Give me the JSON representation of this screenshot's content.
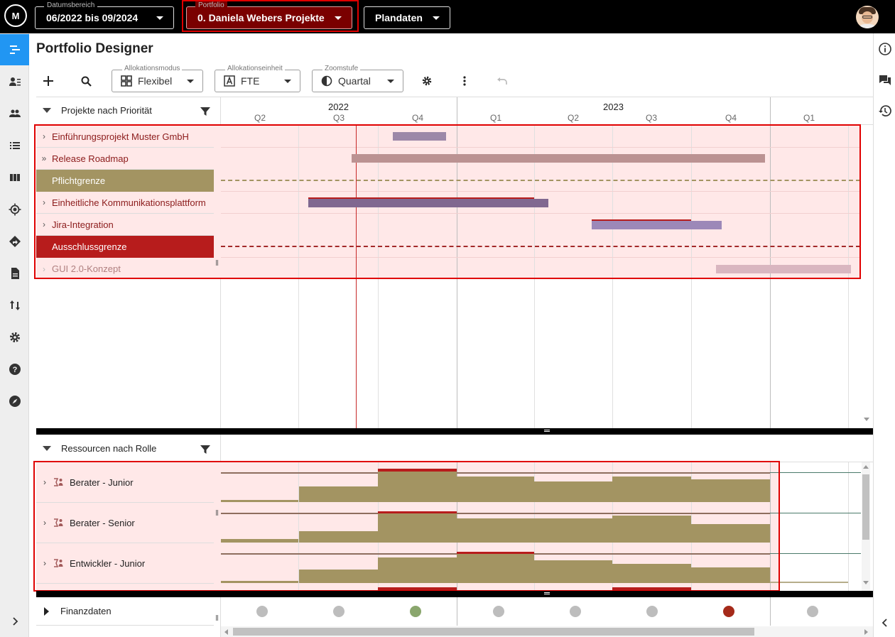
{
  "topbar": {
    "logo_text": "M",
    "date_range": {
      "label": "Datumsbereich",
      "value": "06/2022 bis 09/2024"
    },
    "portfolio": {
      "label": "Portfolio",
      "value": "0. Daniela Webers Projekte"
    },
    "dataset": {
      "value": "Plandaten"
    }
  },
  "page": {
    "title": "Portfolio Designer"
  },
  "toolbar": {
    "alloc_mode": {
      "label": "Allokationsmodus",
      "value": "Flexibel"
    },
    "alloc_unit": {
      "label": "Allokationseinheit",
      "value": "FTE"
    },
    "zoom": {
      "label": "Zoomstufe",
      "value": "Quartal"
    }
  },
  "timeline": {
    "years": [
      "2022",
      "2023"
    ],
    "quarters": [
      "Q2",
      "Q3",
      "Q4",
      "Q1",
      "Q2",
      "Q3",
      "Q4",
      "Q1"
    ]
  },
  "projects": {
    "header": "Projekte nach Priorität",
    "rows": [
      {
        "label": "Einführungsprojekt Muster GmbH",
        "chev": "›"
      },
      {
        "label": "Release Roadmap",
        "chev": "»"
      },
      {
        "label": "Pflichtgrenze",
        "chev": ""
      },
      {
        "label": "Einheitliche Kommunikationsplattform",
        "chev": "›"
      },
      {
        "label": "Jira-Integration",
        "chev": "›"
      },
      {
        "label": "Ausschlussgrenze",
        "chev": ""
      },
      {
        "label": "GUI 2.0-Konzept",
        "chev": "›"
      }
    ]
  },
  "resources": {
    "header": "Ressourcen nach Rolle",
    "rows": [
      {
        "label": "Berater - Junior"
      },
      {
        "label": "Berater - Senior"
      },
      {
        "label": "Entwickler - Junior"
      }
    ]
  },
  "finance": {
    "label": "Finanzdaten"
  },
  "colors": {
    "accent": "#2196f3",
    "portfolio_bg": "#7a0000",
    "mandatory": "#a39462",
    "exclusion": "#b71c1c",
    "status_ok": "#8aa66d",
    "status_bad": "#a52a1a",
    "status_neutral": "#bdbdbd"
  }
}
